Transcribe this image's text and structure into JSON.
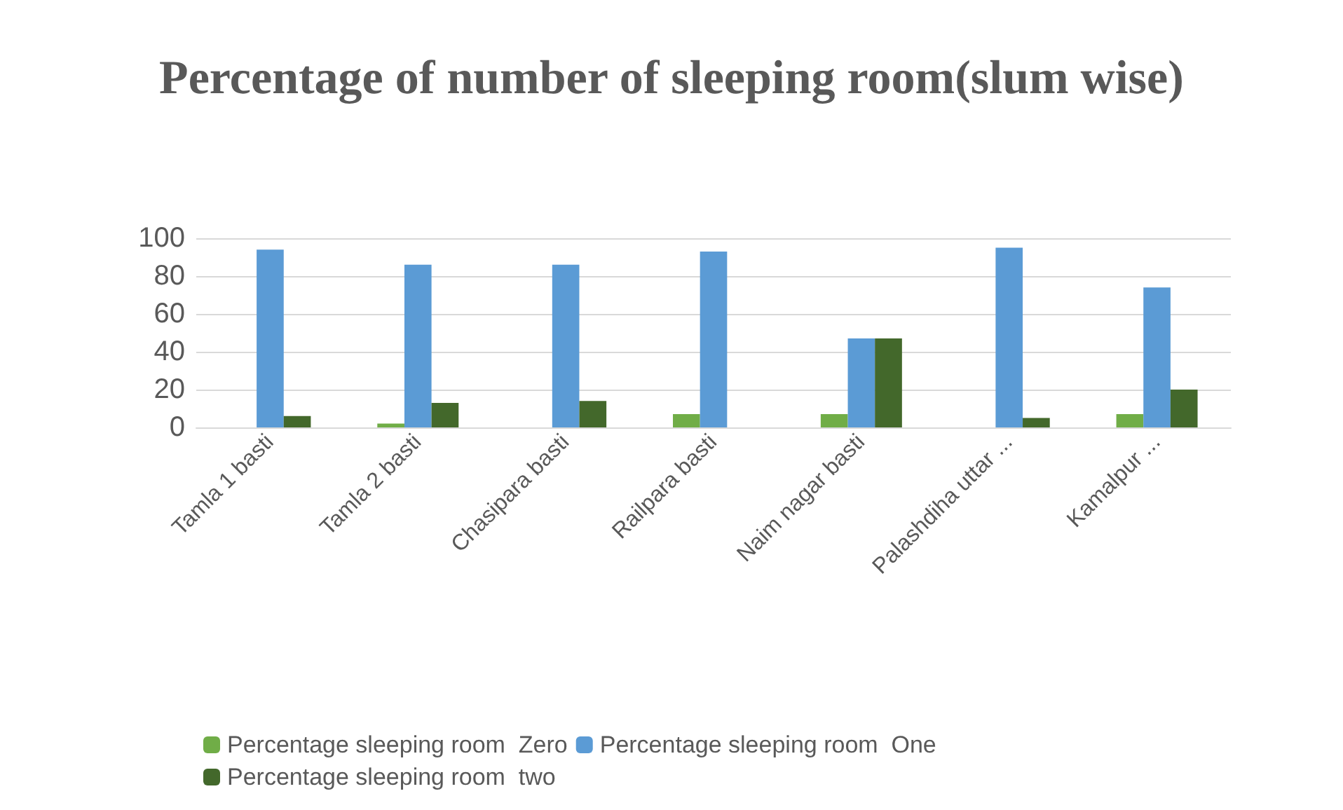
{
  "chart_data": {
    "type": "bar",
    "title": "Percentage of number of sleeping room(slum wise)",
    "categories": [
      "Tamla 1 basti",
      "Tamla 2 basti",
      "Chasipara basti",
      "Railpara basti",
      "Naim nagar basti",
      "Palashdiha uttar ...",
      "Kamalpur ..."
    ],
    "series": [
      {
        "name": "Percentage sleeping room  Zero",
        "color": "#70ad47",
        "values": [
          0,
          2,
          0,
          7,
          7,
          0,
          7
        ]
      },
      {
        "name": "Percentage sleeping room  One",
        "color": "#5b9bd5",
        "values": [
          94,
          86,
          86,
          93,
          47,
          95,
          74
        ]
      },
      {
        "name": "Percentage sleeping room  two",
        "color": "#43682b",
        "values": [
          6,
          13,
          14,
          0,
          47,
          5,
          20
        ]
      }
    ],
    "ylim": [
      0,
      100
    ],
    "yticks": [
      0,
      20,
      40,
      60,
      80,
      100
    ],
    "grid": "y",
    "legend": "bottom"
  }
}
